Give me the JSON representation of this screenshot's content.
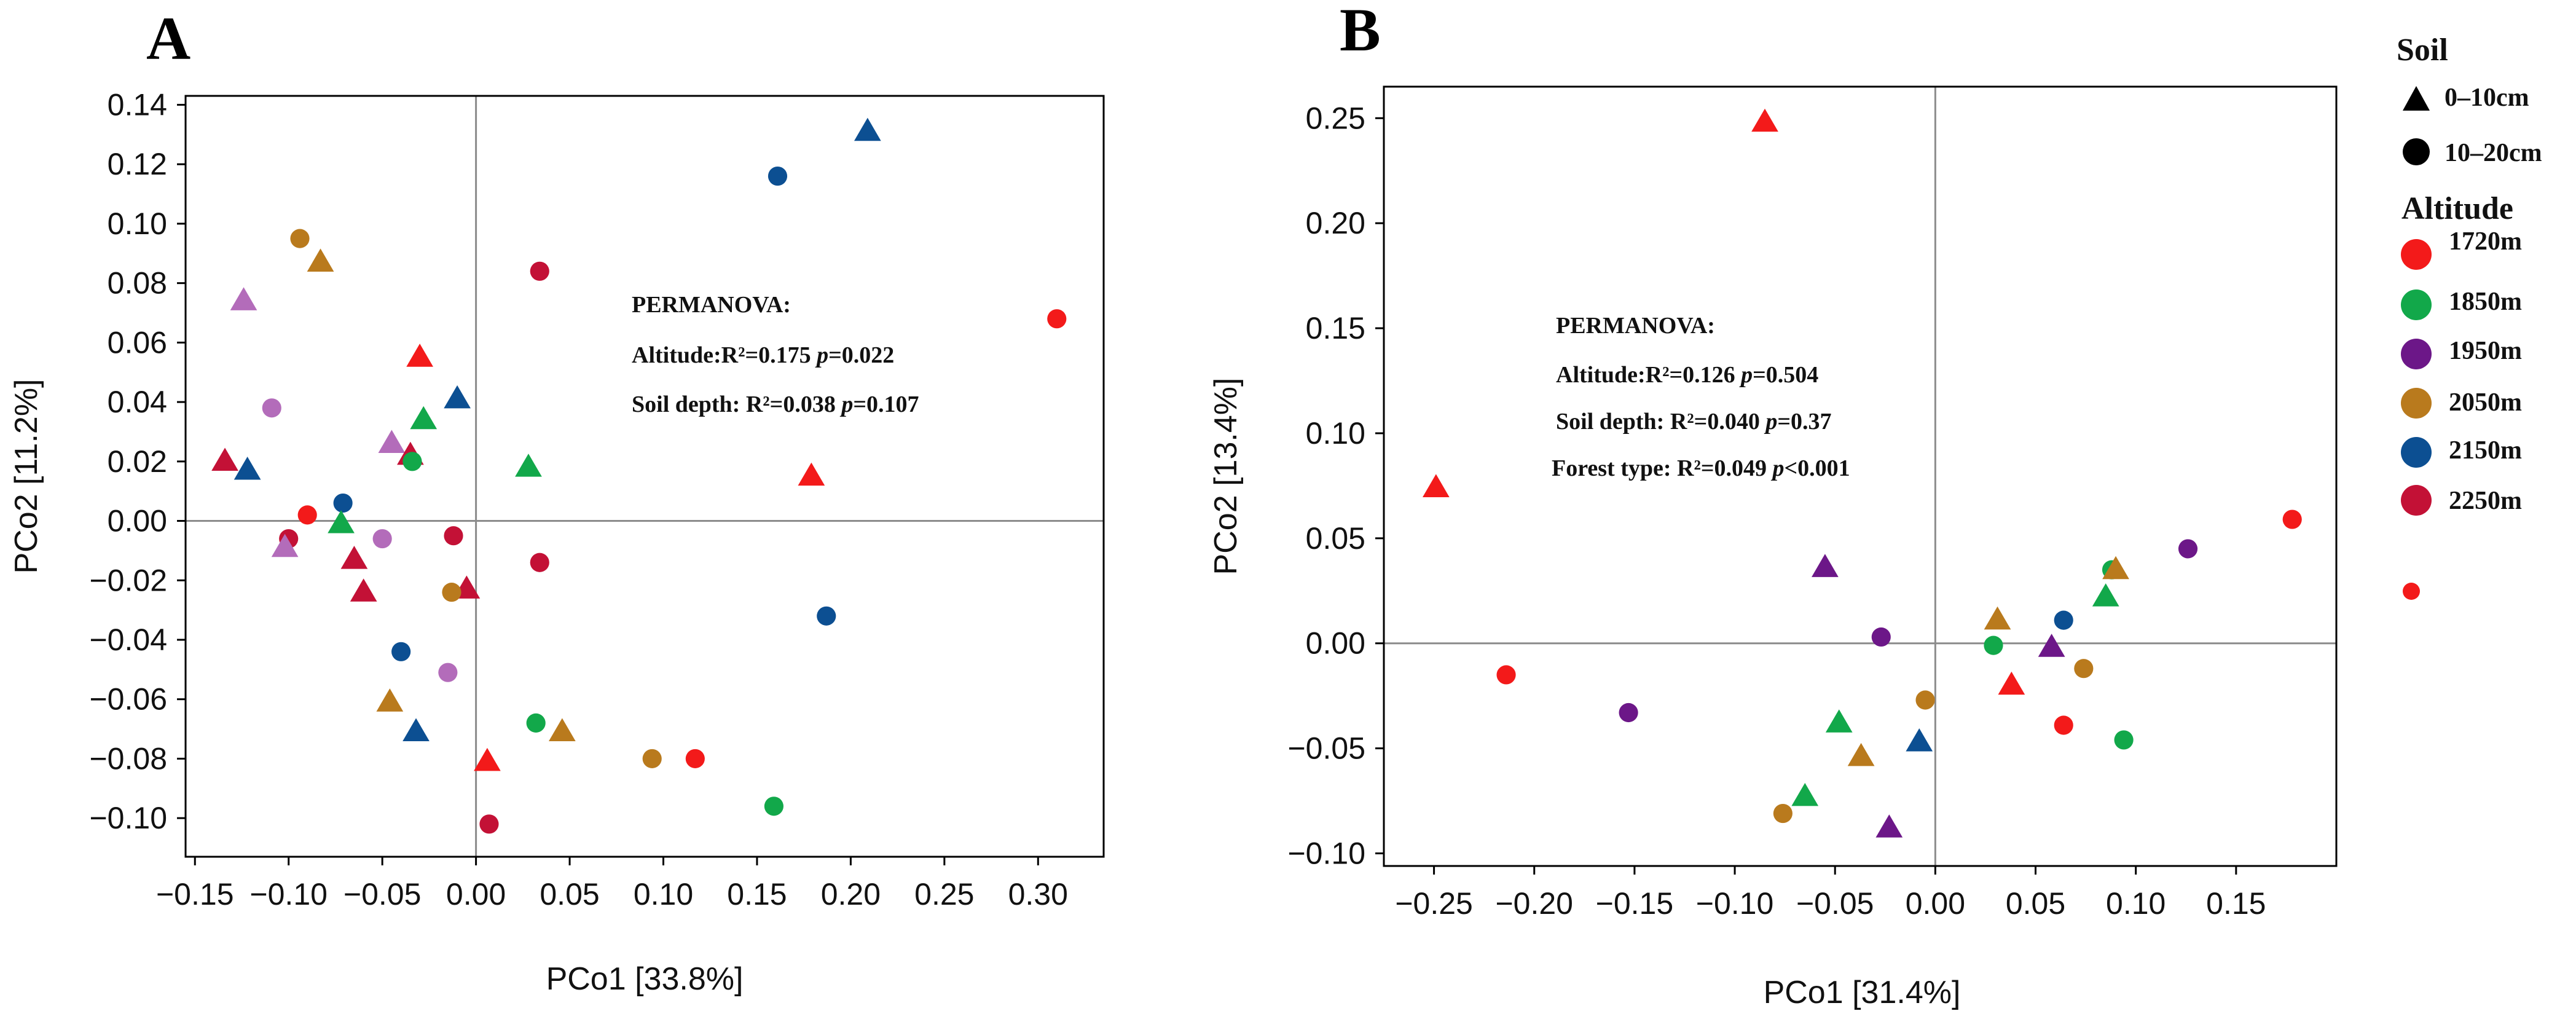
{
  "colors": {
    "1720m": "#f31a1a",
    "1850m": "#12a84a",
    "1950m": "#6c1788",
    "2050m": "#b97a1d",
    "2150m": "#0c4f92",
    "2250m": "#c31136",
    "1950m_A": "#b36cba"
  },
  "legend": {
    "soil_title": "Soil",
    "soil_items": [
      {
        "label": "0–10cm",
        "shape": "triangle-icon"
      },
      {
        "label": "10–20cm",
        "shape": "circle-icon"
      }
    ],
    "altitude_title": "Altitude",
    "altitude_items": [
      {
        "label": "1720m",
        "key": "1720m"
      },
      {
        "label": "1850m",
        "key": "1850m"
      },
      {
        "label": "1950m",
        "key": "1950m"
      },
      {
        "label": "2050m",
        "key": "2050m"
      },
      {
        "label": "2150m",
        "key": "2150m"
      },
      {
        "label": "2250m",
        "key": "2250m"
      }
    ]
  },
  "chart_data": [
    {
      "panel": "A",
      "type": "scatter",
      "xlabel": "PCo1 [33.8%]",
      "ylabel": "PCo2 [11.2%]",
      "xlim": [
        -0.155,
        0.335
      ],
      "ylim": [
        -0.113,
        0.143
      ],
      "xticks": [
        -0.15,
        -0.1,
        -0.05,
        0.0,
        0.05,
        0.1,
        0.15,
        0.2,
        0.25,
        0.3
      ],
      "xtick_labels": [
        "−0.15",
        "−0.10",
        "−0.05",
        "0.00",
        "0.05",
        "0.10",
        "0.15",
        "0.20",
        "0.25",
        "0.30"
      ],
      "yticks": [
        0.14,
        0.12,
        0.1,
        0.08,
        0.06,
        0.04,
        0.02,
        0.0,
        -0.02,
        -0.04,
        -0.06,
        -0.08,
        -0.1
      ],
      "ytick_labels": [
        "0.14",
        "0.12",
        "0.10",
        "0.08",
        "0.06",
        "0.04",
        "0.02",
        "0.00",
        "−0.02",
        "−0.04",
        "−0.06",
        "−0.08",
        "−0.10"
      ],
      "annotation": {
        "title": "PERMANOVA:",
        "lines": [
          {
            "label": "Altitude:R²=0.175 ",
            "p_label": "p",
            "value": "=0.022"
          },
          {
            "label": "Soil depth: R²=0.038 ",
            "p_label": "p",
            "value": "=0.107"
          }
        ]
      },
      "points": [
        {
          "x": 0.209,
          "y": 0.131,
          "shape": "triangle",
          "altitude": "2150m"
        },
        {
          "x": 0.161,
          "y": 0.116,
          "shape": "circle",
          "altitude": "2150m"
        },
        {
          "x": -0.094,
          "y": 0.095,
          "shape": "circle",
          "altitude": "2050m"
        },
        {
          "x": -0.083,
          "y": 0.087,
          "shape": "triangle",
          "altitude": "2050m"
        },
        {
          "x": 0.034,
          "y": 0.084,
          "shape": "circle",
          "altitude": "2250m"
        },
        {
          "x": -0.124,
          "y": 0.074,
          "shape": "triangle",
          "altitude": "1950m_A"
        },
        {
          "x": 0.31,
          "y": 0.068,
          "shape": "circle",
          "altitude": "1720m"
        },
        {
          "x": -0.03,
          "y": 0.055,
          "shape": "triangle",
          "altitude": "1720m"
        },
        {
          "x": -0.01,
          "y": 0.041,
          "shape": "triangle",
          "altitude": "2150m"
        },
        {
          "x": -0.109,
          "y": 0.038,
          "shape": "circle",
          "altitude": "1950m_A"
        },
        {
          "x": -0.028,
          "y": 0.034,
          "shape": "triangle",
          "altitude": "1850m"
        },
        {
          "x": -0.045,
          "y": 0.026,
          "shape": "triangle",
          "altitude": "1950m_A"
        },
        {
          "x": -0.035,
          "y": 0.022,
          "shape": "triangle",
          "altitude": "2250m"
        },
        {
          "x": -0.134,
          "y": 0.02,
          "shape": "triangle",
          "altitude": "2250m"
        },
        {
          "x": -0.034,
          "y": 0.02,
          "shape": "circle",
          "altitude": "1850m"
        },
        {
          "x": 0.028,
          "y": 0.018,
          "shape": "triangle",
          "altitude": "1850m"
        },
        {
          "x": -0.122,
          "y": 0.017,
          "shape": "triangle",
          "altitude": "2150m"
        },
        {
          "x": 0.179,
          "y": 0.015,
          "shape": "triangle",
          "altitude": "1720m"
        },
        {
          "x": -0.071,
          "y": 0.006,
          "shape": "circle",
          "altitude": "2150m"
        },
        {
          "x": -0.09,
          "y": 0.002,
          "shape": "circle",
          "altitude": "1720m"
        },
        {
          "x": -0.072,
          "y": -0.001,
          "shape": "triangle",
          "altitude": "1850m"
        },
        {
          "x": -0.1,
          "y": -0.006,
          "shape": "circle",
          "altitude": "2250m"
        },
        {
          "x": -0.102,
          "y": -0.009,
          "shape": "triangle",
          "altitude": "1950m_A"
        },
        {
          "x": -0.05,
          "y": -0.006,
          "shape": "circle",
          "altitude": "1950m_A"
        },
        {
          "x": -0.012,
          "y": -0.005,
          "shape": "circle",
          "altitude": "2250m"
        },
        {
          "x": -0.065,
          "y": -0.013,
          "shape": "triangle",
          "altitude": "2250m"
        },
        {
          "x": 0.034,
          "y": -0.014,
          "shape": "circle",
          "altitude": "2250m"
        },
        {
          "x": -0.06,
          "y": -0.024,
          "shape": "triangle",
          "altitude": "2250m"
        },
        {
          "x": -0.005,
          "y": -0.023,
          "shape": "triangle",
          "altitude": "2250m"
        },
        {
          "x": -0.013,
          "y": -0.024,
          "shape": "circle",
          "altitude": "2050m"
        },
        {
          "x": 0.187,
          "y": -0.032,
          "shape": "circle",
          "altitude": "2150m"
        },
        {
          "x": -0.04,
          "y": -0.044,
          "shape": "circle",
          "altitude": "2150m"
        },
        {
          "x": -0.015,
          "y": -0.051,
          "shape": "circle",
          "altitude": "1950m_A"
        },
        {
          "x": -0.046,
          "y": -0.061,
          "shape": "triangle",
          "altitude": "2050m"
        },
        {
          "x": 0.032,
          "y": -0.068,
          "shape": "circle",
          "altitude": "1850m"
        },
        {
          "x": -0.032,
          "y": -0.071,
          "shape": "triangle",
          "altitude": "2150m"
        },
        {
          "x": 0.046,
          "y": -0.071,
          "shape": "triangle",
          "altitude": "2050m"
        },
        {
          "x": 0.006,
          "y": -0.081,
          "shape": "triangle",
          "altitude": "1720m"
        },
        {
          "x": 0.094,
          "y": -0.08,
          "shape": "circle",
          "altitude": "2050m"
        },
        {
          "x": 0.117,
          "y": -0.08,
          "shape": "circle",
          "altitude": "1720m"
        },
        {
          "x": 0.159,
          "y": -0.096,
          "shape": "circle",
          "altitude": "1850m"
        },
        {
          "x": 0.007,
          "y": -0.102,
          "shape": "circle",
          "altitude": "2250m"
        }
      ]
    },
    {
      "panel": "B",
      "type": "scatter",
      "xlabel": "PCo1 [31.4%]",
      "ylabel": "PCo2 [13.4%]",
      "xlim": [
        -0.275,
        0.2
      ],
      "ylim": [
        -0.106,
        0.265
      ],
      "xticks": [
        -0.25,
        -0.2,
        -0.15,
        -0.1,
        -0.05,
        0.0,
        0.05,
        0.1,
        0.15
      ],
      "xtick_labels": [
        "−0.25",
        "−0.20",
        "−0.15",
        "−0.10",
        "−0.05",
        "0.00",
        "0.05",
        "0.10",
        "0.15"
      ],
      "yticks": [
        0.25,
        0.2,
        0.15,
        0.1,
        0.05,
        0.0,
        -0.05,
        -0.1
      ],
      "ytick_labels": [
        "0.25",
        "0.20",
        "0.15",
        "0.10",
        "0.05",
        "0.00",
        "−0.05",
        "−0.10"
      ],
      "annotation": {
        "title": "PERMANOVA:",
        "lines": [
          {
            "label": "Altitude:R²=0.126 ",
            "p_label": "p",
            "value": "=0.504"
          },
          {
            "label": "Soil depth: R²=0.040 ",
            "p_label": "p",
            "value": "=0.37"
          },
          {
            "label": "Forest type: R²=0.049 ",
            "p_label": "p",
            "value": "<0.001"
          }
        ]
      },
      "points": [
        {
          "x": -0.085,
          "y": 0.248,
          "shape": "triangle",
          "altitude": "1720m"
        },
        {
          "x": -0.249,
          "y": 0.074,
          "shape": "triangle",
          "altitude": "1720m"
        },
        {
          "x": 0.178,
          "y": 0.059,
          "shape": "circle",
          "altitude": "1720m"
        },
        {
          "x": 0.126,
          "y": 0.045,
          "shape": "circle",
          "altitude": "1950m"
        },
        {
          "x": -0.055,
          "y": 0.036,
          "shape": "triangle",
          "altitude": "1950m"
        },
        {
          "x": 0.088,
          "y": 0.035,
          "shape": "circle",
          "altitude": "1850m"
        },
        {
          "x": 0.09,
          "y": 0.035,
          "shape": "triangle",
          "altitude": "2050m"
        },
        {
          "x": 0.085,
          "y": 0.022,
          "shape": "triangle",
          "altitude": "1850m"
        },
        {
          "x": 0.064,
          "y": 0.011,
          "shape": "circle",
          "altitude": "2150m"
        },
        {
          "x": 0.031,
          "y": 0.011,
          "shape": "triangle",
          "altitude": "2050m"
        },
        {
          "x": -0.027,
          "y": 0.003,
          "shape": "circle",
          "altitude": "1950m"
        },
        {
          "x": 0.058,
          "y": -0.002,
          "shape": "triangle",
          "altitude": "1950m"
        },
        {
          "x": 0.029,
          "y": -0.001,
          "shape": "circle",
          "altitude": "1850m"
        },
        {
          "x": 0.074,
          "y": -0.012,
          "shape": "circle",
          "altitude": "2050m"
        },
        {
          "x": -0.214,
          "y": -0.015,
          "shape": "circle",
          "altitude": "1720m"
        },
        {
          "x": 0.038,
          "y": -0.02,
          "shape": "triangle",
          "altitude": "1720m"
        },
        {
          "x": -0.005,
          "y": -0.027,
          "shape": "circle",
          "altitude": "2050m"
        },
        {
          "x": -0.153,
          "y": -0.033,
          "shape": "circle",
          "altitude": "1950m"
        },
        {
          "x": -0.048,
          "y": -0.038,
          "shape": "triangle",
          "altitude": "1850m"
        },
        {
          "x": 0.064,
          "y": -0.039,
          "shape": "circle",
          "altitude": "1720m"
        },
        {
          "x": 0.094,
          "y": -0.046,
          "shape": "circle",
          "altitude": "1850m"
        },
        {
          "x": -0.008,
          "y": -0.047,
          "shape": "triangle",
          "altitude": "2150m"
        },
        {
          "x": -0.037,
          "y": -0.054,
          "shape": "triangle",
          "altitude": "2050m"
        },
        {
          "x": -0.065,
          "y": -0.073,
          "shape": "triangle",
          "altitude": "1850m"
        },
        {
          "x": -0.076,
          "y": -0.081,
          "shape": "circle",
          "altitude": "2050m"
        },
        {
          "x": -0.023,
          "y": -0.088,
          "shape": "triangle",
          "altitude": "1950m"
        }
      ]
    }
  ]
}
